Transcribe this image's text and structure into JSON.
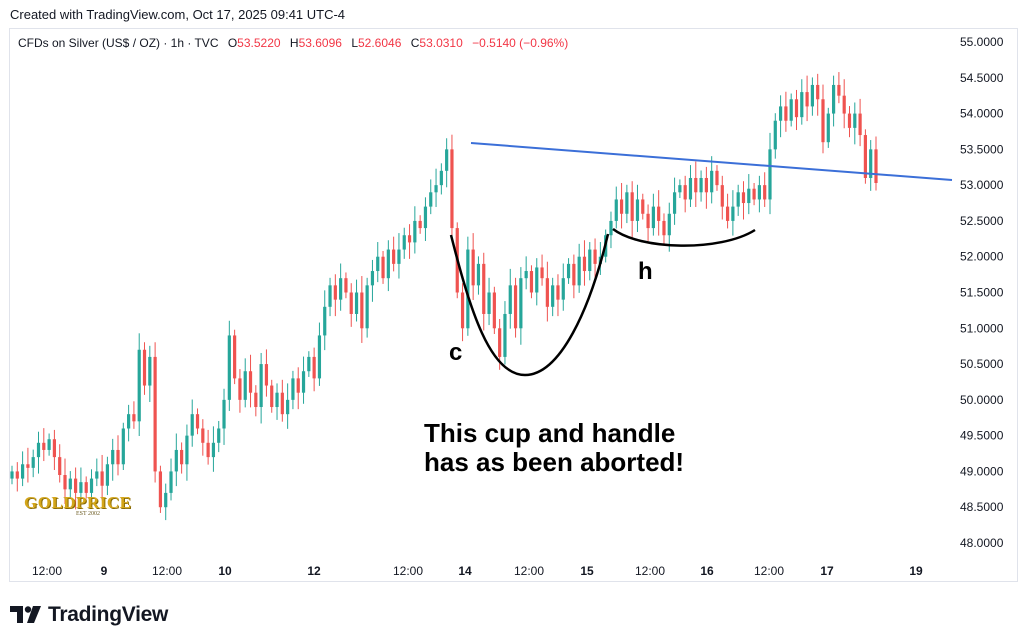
{
  "header": {
    "created": "Created with TradingView.com, Oct 17, 2025 09:41 UTC-4"
  },
  "legend": {
    "symbol": "CFDs on Silver (US$ / OZ) · 1h · TVC",
    "o_label": "O",
    "o_value": "53.5220",
    "h_label": "H",
    "h_value": "53.6096",
    "l_label": "L",
    "l_value": "52.6046",
    "c_label": "C",
    "c_value": "53.0310",
    "change": "−0.5140 (−0.96%)"
  },
  "annotations": {
    "cup_letter": "c",
    "handle_letter": "h",
    "note_line1": "This cup and handle",
    "note_line2": "has as been aborted!"
  },
  "watermark": {
    "brand": "GOLDPRICE",
    "est": "EST 2002"
  },
  "footer": {
    "brand": "TradingView"
  },
  "colors": {
    "up": "#26a69a",
    "down": "#ef5350",
    "trendline": "#3b6fd8",
    "annotation": "#000000"
  },
  "chart_data": {
    "type": "candlestick",
    "title": "CFDs on Silver (US$ / OZ) · 1h · TVC",
    "ylim": [
      47.85,
      55.2
    ],
    "y_ticks": [
      "55.0000",
      "54.5000",
      "54.0000",
      "53.5000",
      "53.0000",
      "52.5000",
      "52.0000",
      "51.5000",
      "51.0000",
      "50.5000",
      "50.0000",
      "49.5000",
      "49.0000",
      "48.5000",
      "48.0000"
    ],
    "x_ticks": [
      {
        "label": "12:00",
        "bold": false
      },
      {
        "label": "9",
        "bold": true
      },
      {
        "label": "12:00",
        "bold": false
      },
      {
        "label": "10",
        "bold": true
      },
      {
        "label": "12",
        "bold": true
      },
      {
        "label": "12:00",
        "bold": false
      },
      {
        "label": "14",
        "bold": true
      },
      {
        "label": "12:00",
        "bold": false
      },
      {
        "label": "15",
        "bold": true
      },
      {
        "label": "12:00",
        "bold": false
      },
      {
        "label": "16",
        "bold": true
      },
      {
        "label": "12:00",
        "bold": false
      },
      {
        "label": "17",
        "bold": true
      },
      {
        "label": "19",
        "bold": true
      }
    ],
    "candles_open_close": [
      [
        48.9,
        49.0
      ],
      [
        49.0,
        48.9
      ],
      [
        48.9,
        49.1
      ],
      [
        49.1,
        49.05
      ],
      [
        49.05,
        49.2
      ],
      [
        49.2,
        49.4
      ],
      [
        49.4,
        49.3
      ],
      [
        49.3,
        49.45
      ],
      [
        49.45,
        49.2
      ],
      [
        49.2,
        48.95
      ],
      [
        48.95,
        48.75
      ],
      [
        48.75,
        48.9
      ],
      [
        48.9,
        48.7
      ],
      [
        48.7,
        48.85
      ],
      [
        48.85,
        48.7
      ],
      [
        48.7,
        48.9
      ],
      [
        48.9,
        49.0
      ],
      [
        49.0,
        48.8
      ],
      [
        48.8,
        49.1
      ],
      [
        49.1,
        49.3
      ],
      [
        49.3,
        49.1
      ],
      [
        49.1,
        49.6
      ],
      [
        49.6,
        49.8
      ],
      [
        49.8,
        49.7
      ],
      [
        49.7,
        50.7
      ],
      [
        50.7,
        50.2
      ],
      [
        50.2,
        50.6
      ],
      [
        50.6,
        49.0
      ],
      [
        49.0,
        48.5
      ],
      [
        48.5,
        48.7
      ],
      [
        48.7,
        49.0
      ],
      [
        49.0,
        49.3
      ],
      [
        49.3,
        49.1
      ],
      [
        49.1,
        49.5
      ],
      [
        49.5,
        49.8
      ],
      [
        49.8,
        49.6
      ],
      [
        49.6,
        49.4
      ],
      [
        49.4,
        49.2
      ],
      [
        49.2,
        49.4
      ],
      [
        49.4,
        49.6
      ],
      [
        49.6,
        50.0
      ],
      [
        50.0,
        50.9
      ],
      [
        50.9,
        50.3
      ],
      [
        50.3,
        50.0
      ],
      [
        50.0,
        50.4
      ],
      [
        50.4,
        50.1
      ],
      [
        50.1,
        49.9
      ],
      [
        49.9,
        50.5
      ],
      [
        50.5,
        50.2
      ],
      [
        50.2,
        49.9
      ],
      [
        49.9,
        50.1
      ],
      [
        50.1,
        49.8
      ],
      [
        49.8,
        50.0
      ],
      [
        50.0,
        50.3
      ],
      [
        50.3,
        50.1
      ],
      [
        50.1,
        50.4
      ],
      [
        50.4,
        50.6
      ],
      [
        50.6,
        50.3
      ],
      [
        50.3,
        50.9
      ],
      [
        50.9,
        51.3
      ],
      [
        51.3,
        51.6
      ],
      [
        51.6,
        51.4
      ],
      [
        51.4,
        51.7
      ],
      [
        51.7,
        51.5
      ],
      [
        51.5,
        51.2
      ],
      [
        51.2,
        51.5
      ],
      [
        51.5,
        51.0
      ],
      [
        51.0,
        51.6
      ],
      [
        51.6,
        51.8
      ],
      [
        51.8,
        52.0
      ],
      [
        52.0,
        51.7
      ],
      [
        51.7,
        52.1
      ],
      [
        52.1,
        51.9
      ],
      [
        51.9,
        52.1
      ],
      [
        52.1,
        52.3
      ],
      [
        52.3,
        52.2
      ],
      [
        52.2,
        52.5
      ],
      [
        52.5,
        52.4
      ],
      [
        52.4,
        52.7
      ],
      [
        52.7,
        52.9
      ],
      [
        52.9,
        53.0
      ],
      [
        53.0,
        53.2
      ],
      [
        53.2,
        53.5
      ],
      [
        53.5,
        52.4
      ],
      [
        52.4,
        51.5
      ],
      [
        51.5,
        51.0
      ],
      [
        51.0,
        52.1
      ],
      [
        52.1,
        51.6
      ],
      [
        51.6,
        51.9
      ],
      [
        51.9,
        51.2
      ],
      [
        51.2,
        51.5
      ],
      [
        51.5,
        51.0
      ],
      [
        51.0,
        50.6
      ],
      [
        50.6,
        51.2
      ],
      [
        51.2,
        51.6
      ],
      [
        51.6,
        51.0
      ],
      [
        51.0,
        51.7
      ],
      [
        51.7,
        51.8
      ],
      [
        51.8,
        51.5
      ],
      [
        51.5,
        51.85
      ],
      [
        51.85,
        51.7
      ],
      [
        51.7,
        51.3
      ],
      [
        51.3,
        51.6
      ],
      [
        51.6,
        51.4
      ],
      [
        51.4,
        51.7
      ],
      [
        51.7,
        51.9
      ],
      [
        51.9,
        51.6
      ],
      [
        51.6,
        52.0
      ],
      [
        52.0,
        51.8
      ],
      [
        51.8,
        52.1
      ],
      [
        52.1,
        51.9
      ],
      [
        51.9,
        52.0
      ],
      [
        52.0,
        52.3
      ],
      [
        52.3,
        52.5
      ],
      [
        52.5,
        52.8
      ],
      [
        52.8,
        52.6
      ],
      [
        52.6,
        52.9
      ],
      [
        52.9,
        52.5
      ],
      [
        52.5,
        52.8
      ],
      [
        52.8,
        52.6
      ],
      [
        52.6,
        52.4
      ],
      [
        52.4,
        52.7
      ],
      [
        52.7,
        52.5
      ],
      [
        52.5,
        52.3
      ],
      [
        52.3,
        52.6
      ],
      [
        52.6,
        52.9
      ],
      [
        52.9,
        53.0
      ],
      [
        53.0,
        52.8
      ],
      [
        52.8,
        53.1
      ],
      [
        53.1,
        52.9
      ],
      [
        52.9,
        53.1
      ],
      [
        53.1,
        52.9
      ],
      [
        52.9,
        53.2
      ],
      [
        53.2,
        53.0
      ],
      [
        53.0,
        52.7
      ],
      [
        52.7,
        52.5
      ],
      [
        52.5,
        52.7
      ],
      [
        52.7,
        52.9
      ],
      [
        52.9,
        52.75
      ],
      [
        52.75,
        52.95
      ],
      [
        52.95,
        52.8
      ],
      [
        52.8,
        53.0
      ],
      [
        53.0,
        52.8
      ],
      [
        52.8,
        53.5
      ],
      [
        53.5,
        53.9
      ],
      [
        53.9,
        54.1
      ],
      [
        54.1,
        53.9
      ],
      [
        53.9,
        54.2
      ],
      [
        54.2,
        53.95
      ],
      [
        53.95,
        54.3
      ],
      [
        54.3,
        54.1
      ],
      [
        54.1,
        54.4
      ],
      [
        54.4,
        54.2
      ],
      [
        54.2,
        53.6
      ],
      [
        53.6,
        54.0
      ],
      [
        54.0,
        54.4
      ],
      [
        54.4,
        54.25
      ],
      [
        54.25,
        54.0
      ],
      [
        54.0,
        53.8
      ],
      [
        53.8,
        54.0
      ],
      [
        54.0,
        53.7
      ],
      [
        53.7,
        53.1
      ],
      [
        53.1,
        53.5
      ],
      [
        53.5,
        53.03
      ]
    ]
  }
}
